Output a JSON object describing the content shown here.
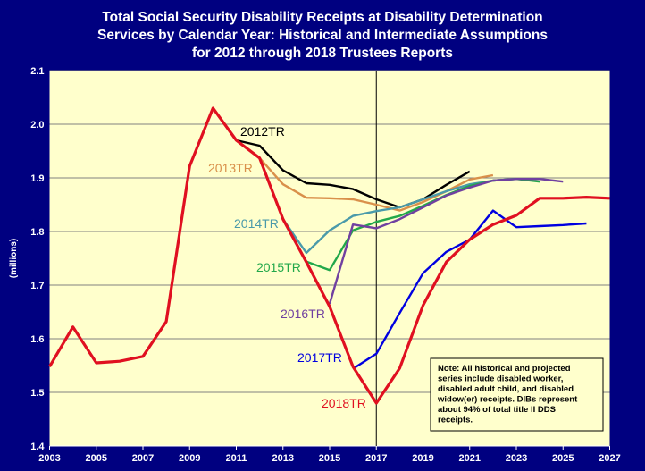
{
  "chart_data": {
    "type": "line",
    "title": [
      "Total Social Security Disability Receipts at Disability Determination",
      "Services by Calendar Year: Historical and Intermediate Assumptions",
      "for 2012 through 2018 Trustees Reports"
    ],
    "xlabel": "",
    "ylabel": "(millions)",
    "xlim": [
      2003,
      2027
    ],
    "ylim": [
      1.4,
      2.1
    ],
    "xticks": [
      "2003",
      "2005",
      "2007",
      "2009",
      "2011",
      "2013",
      "2015",
      "2017",
      "2019",
      "2021",
      "2023",
      "2025",
      "2027"
    ],
    "yticks": [
      "1.4",
      "1.5",
      "1.6",
      "1.7",
      "1.8",
      "1.9",
      "2.0",
      "2.1"
    ],
    "grid": "horizontal",
    "reference_line_x": 2017,
    "background": "#FFFFCC",
    "frame_color": "#000080",
    "series": [
      {
        "name": "2012TR",
        "color": "#000000",
        "x": [
          2011,
          2012,
          2013,
          2014,
          2015,
          2016,
          2017,
          2018,
          2019,
          2020,
          2021
        ],
        "y": [
          1.97,
          1.96,
          1.914,
          1.89,
          1.887,
          1.879,
          1.86,
          1.845,
          1.86,
          1.887,
          1.912
        ]
      },
      {
        "name": "2013TR",
        "color": "#D9904A",
        "x": [
          2012,
          2013,
          2014,
          2015,
          2016,
          2017,
          2018,
          2019,
          2020,
          2021,
          2022
        ],
        "y": [
          1.937,
          1.888,
          1.863,
          1.862,
          1.86,
          1.85,
          1.839,
          1.855,
          1.875,
          1.897,
          1.905
        ]
      },
      {
        "name": "2014TR",
        "color": "#4A9AAA",
        "x": [
          2013,
          2014,
          2015,
          2016,
          2017,
          2018,
          2019,
          2020,
          2021,
          2022,
          2023
        ],
        "y": [
          1.823,
          1.76,
          1.802,
          1.829,
          1.838,
          1.845,
          1.86,
          1.875,
          1.888,
          1.895,
          1.898
        ]
      },
      {
        "name": "2015TR",
        "color": "#22A84A",
        "x": [
          2014,
          2015,
          2016,
          2017,
          2018,
          2019,
          2020,
          2021,
          2022,
          2023,
          2024
        ],
        "y": [
          1.744,
          1.728,
          1.802,
          1.818,
          1.829,
          1.848,
          1.868,
          1.885,
          1.895,
          1.898,
          1.893
        ]
      },
      {
        "name": "2016TR",
        "color": "#7040A0",
        "x": [
          2015,
          2016,
          2017,
          2018,
          2019,
          2020,
          2021,
          2022,
          2023,
          2024,
          2025
        ],
        "y": [
          1.665,
          1.813,
          1.806,
          1.823,
          1.845,
          1.867,
          1.882,
          1.895,
          1.898,
          1.898,
          1.893
        ]
      },
      {
        "name": "2017TR",
        "color": "#0000E0",
        "x": [
          2016,
          2017,
          2018,
          2019,
          2020,
          2021,
          2022,
          2023,
          2024,
          2025,
          2026
        ],
        "y": [
          1.544,
          1.572,
          1.648,
          1.722,
          1.762,
          1.785,
          1.839,
          1.808,
          1.81,
          1.812,
          1.815
        ]
      },
      {
        "name": "2018TR",
        "color": "#E01020",
        "x": [
          2003,
          2004,
          2005,
          2006,
          2007,
          2008,
          2009,
          2010,
          2011,
          2012,
          2013,
          2014,
          2015,
          2016,
          2017,
          2018,
          2019,
          2020,
          2021,
          2022,
          2023,
          2024,
          2025,
          2026,
          2027
        ],
        "y": [
          1.548,
          1.622,
          1.555,
          1.558,
          1.567,
          1.632,
          1.922,
          2.03,
          1.97,
          1.937,
          1.823,
          1.743,
          1.66,
          1.548,
          1.48,
          1.545,
          1.662,
          1.743,
          1.785,
          1.813,
          1.83,
          1.862,
          1.862,
          1.864,
          1.862
        ]
      }
    ],
    "annotation": [
      "Note: All historical and projected",
      "series include disabled worker,",
      "disabled adult child, and disabled",
      "widow(er) receipts. DIBs represent",
      "about 94% of total title II DDS",
      "receipts."
    ]
  }
}
